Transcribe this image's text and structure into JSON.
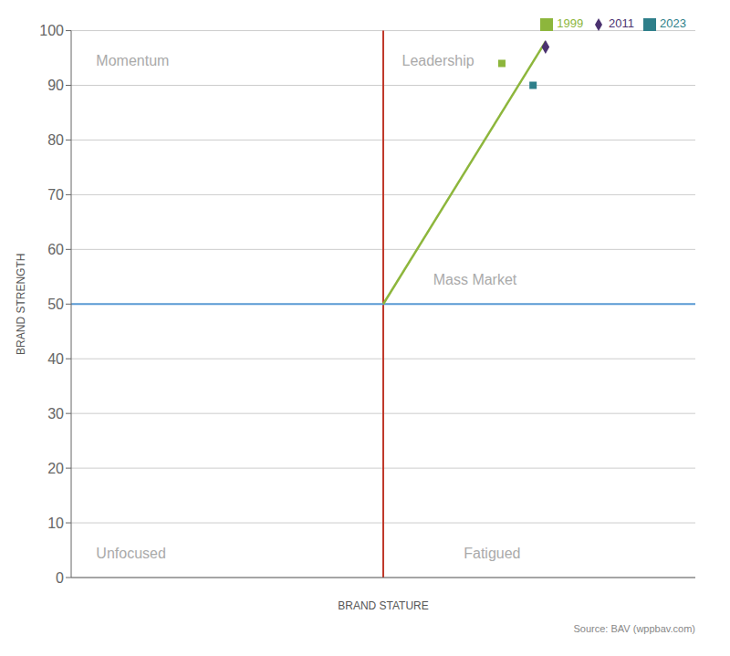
{
  "chart_data": {
    "type": "scatter",
    "xlabel": "BRAND STATURE",
    "ylabel": "BRAND STRENGTH",
    "xlim": [
      0,
      100
    ],
    "ylim": [
      0,
      100
    ],
    "yticks": [
      0,
      10,
      20,
      30,
      40,
      50,
      60,
      70,
      80,
      90,
      100
    ],
    "tick_labels": "y",
    "grid": true,
    "legend": "upper right",
    "reference_lines": [
      {
        "axis": "x",
        "value": 50,
        "color": "#c0392b"
      },
      {
        "axis": "y",
        "value": 50,
        "color": "#5b9bd5"
      }
    ],
    "series": [
      {
        "type": "line",
        "color": "#8db63c",
        "x": [
          50,
          76
        ],
        "values": [
          50,
          98
        ]
      },
      {
        "name": "1999",
        "color": "#8db63c",
        "marker": "square",
        "x": [
          69
        ],
        "values": [
          94
        ]
      },
      {
        "name": "2011",
        "color": "#4b3270",
        "marker": "diamond",
        "x": [
          76
        ],
        "values": [
          97
        ]
      },
      {
        "name": "2023",
        "color": "#2e7f8a",
        "marker": "square",
        "x": [
          74
        ],
        "values": [
          90
        ]
      }
    ],
    "annotations": [
      {
        "text": "Momentum",
        "x": 4,
        "y": 96,
        "color": "#aaaaaa"
      },
      {
        "text": "Leadership",
        "x": 53,
        "y": 96,
        "color": "#aaaaaa"
      },
      {
        "text": "Mass Market",
        "x": 58,
        "y": 53,
        "color": "#aaaaaa"
      },
      {
        "text": "Unfocused",
        "x": 4,
        "y": 3,
        "color": "#aaaaaa"
      },
      {
        "text": "Fatigued",
        "x": 72,
        "y": 3,
        "color": "#aaaaaa"
      }
    ],
    "source": "Source: BAV (wppbav.com)"
  }
}
